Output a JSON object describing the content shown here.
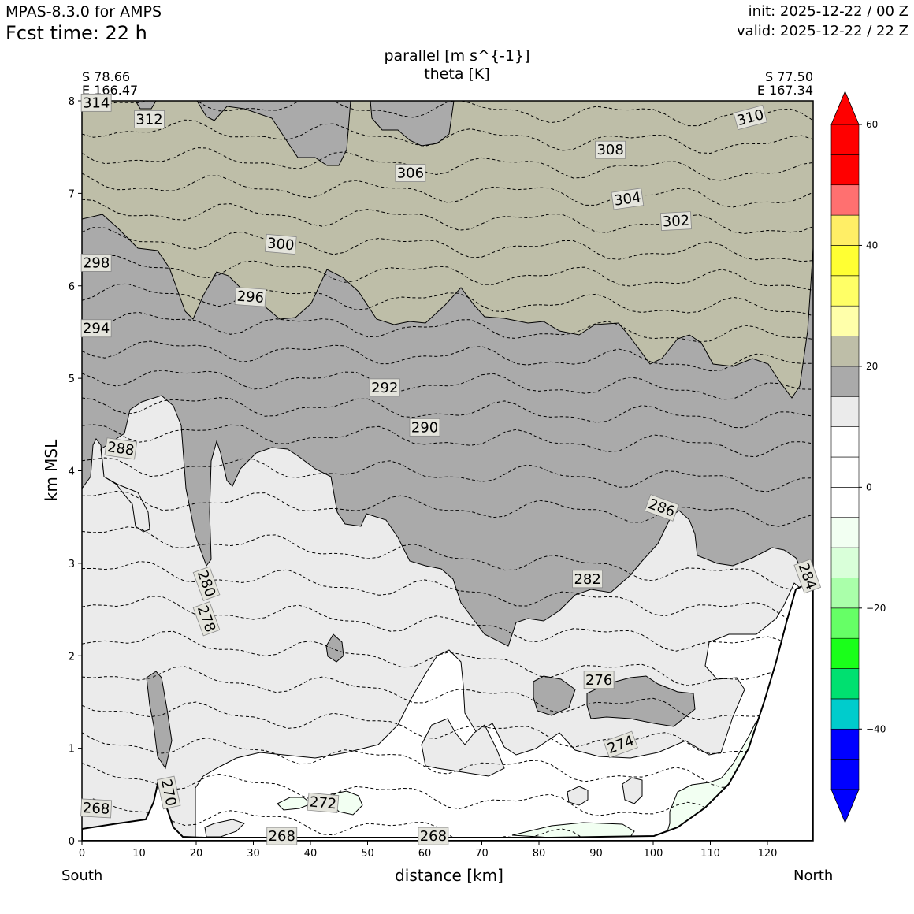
{
  "header": {
    "model": "MPAS-8.3.0 for AMPS",
    "fcst_time": "Fcst time:   22 h",
    "init": "init: 2025-12-22 / 00 Z",
    "valid": "valid: 2025-12-22 / 22 Z"
  },
  "corners": {
    "left_lat": "S 78.66",
    "left_lon": "E 166.47",
    "right_lat": "S 77.50",
    "right_lon": "E 167.34"
  },
  "ends": {
    "left": "South",
    "right": "North"
  },
  "chart_data": {
    "type": "contour",
    "title_line1": "parallel [m s^{-1}]",
    "title_line2": "theta [K]",
    "xlabel": "distance [km]",
    "ylabel": "km MSL",
    "xlim": [
      0,
      128
    ],
    "ylim": [
      0,
      8
    ],
    "xticks": [
      0,
      10,
      20,
      30,
      40,
      50,
      60,
      70,
      80,
      90,
      100,
      110,
      120
    ],
    "yticks": [
      0,
      1,
      2,
      3,
      4,
      5,
      6,
      7,
      8
    ],
    "theta_contour_labels": [
      {
        "value": "314",
        "x": 2.5,
        "y": 7.98,
        "rot": 0
      },
      {
        "value": "312",
        "x": 11.8,
        "y": 7.8,
        "rot": 0
      },
      {
        "value": "310",
        "x": 117,
        "y": 7.82,
        "rot": -15
      },
      {
        "value": "308",
        "x": 92.5,
        "y": 7.47,
        "rot": 0
      },
      {
        "value": "306",
        "x": 57.5,
        "y": 7.22,
        "rot": 0
      },
      {
        "value": "304",
        "x": 95.5,
        "y": 6.94,
        "rot": -8
      },
      {
        "value": "302",
        "x": 104,
        "y": 6.7,
        "rot": -3
      },
      {
        "value": "300",
        "x": 34.8,
        "y": 6.45,
        "rot": 5
      },
      {
        "value": "298",
        "x": 2.5,
        "y": 6.25,
        "rot": 0
      },
      {
        "value": "296",
        "x": 29.5,
        "y": 5.88,
        "rot": 4
      },
      {
        "value": "294",
        "x": 2.5,
        "y": 5.54,
        "rot": 0
      },
      {
        "value": "292",
        "x": 53,
        "y": 4.9,
        "rot": 0
      },
      {
        "value": "290",
        "x": 60,
        "y": 4.47,
        "rot": 0
      },
      {
        "value": "288",
        "x": 6.8,
        "y": 4.24,
        "rot": 8
      },
      {
        "value": "286",
        "x": 101.5,
        "y": 3.6,
        "rot": 20
      },
      {
        "value": "284",
        "x": 127,
        "y": 2.86,
        "rot": 70
      },
      {
        "value": "282",
        "x": 88.5,
        "y": 2.83,
        "rot": 0
      },
      {
        "value": "280",
        "x": 21.8,
        "y": 2.78,
        "rot": 70
      },
      {
        "value": "278",
        "x": 21.8,
        "y": 2.4,
        "rot": 70
      },
      {
        "value": "276",
        "x": 90.5,
        "y": 1.74,
        "rot": 0
      },
      {
        "value": "274",
        "x": 94.3,
        "y": 1.04,
        "rot": -20
      },
      {
        "value": "272",
        "x": 42.2,
        "y": 0.41,
        "rot": 5
      },
      {
        "value": "270",
        "x": 15.2,
        "y": 0.52,
        "rot": 78
      },
      {
        "value": "268",
        "x": 2.5,
        "y": 0.35,
        "rot": 3
      },
      {
        "value": "268",
        "x": 35,
        "y": 0.05,
        "rot": 0
      },
      {
        "value": "268",
        "x": 61.5,
        "y": 0.05,
        "rot": 0
      }
    ],
    "colorbar": {
      "ticks": [
        "60",
        "40",
        "20",
        "0",
        "−20",
        "−40"
      ],
      "tick_values": [
        60,
        40,
        20,
        0,
        -20,
        -40
      ],
      "range": [
        -50,
        60
      ],
      "extend": "both",
      "under_color": "#0000ff",
      "over_color": "#ff0000",
      "levels": [
        {
          "lo": -50,
          "hi": -45,
          "color": "#0000ff"
        },
        {
          "lo": -45,
          "hi": -40,
          "color": "#0000ff"
        },
        {
          "lo": -40,
          "hi": -35,
          "color": "#00cccc"
        },
        {
          "lo": -35,
          "hi": -30,
          "color": "#00e070"
        },
        {
          "lo": -30,
          "hi": -25,
          "color": "#1aff1a"
        },
        {
          "lo": -25,
          "hi": -20,
          "color": "#66ff66"
        },
        {
          "lo": -20,
          "hi": -15,
          "color": "#aaffaa"
        },
        {
          "lo": -15,
          "hi": -10,
          "color": "#d9ffd9"
        },
        {
          "lo": -10,
          "hi": -5,
          "color": "#f2fff2"
        },
        {
          "lo": -5,
          "hi": 0,
          "color": "#ffffff"
        },
        {
          "lo": 0,
          "hi": 5,
          "color": "#ffffff"
        },
        {
          "lo": 5,
          "hi": 10,
          "color": "#ffffff"
        },
        {
          "lo": 10,
          "hi": 15,
          "color": "#ebebeb"
        },
        {
          "lo": 15,
          "hi": 20,
          "color": "#aaaaaa"
        },
        {
          "lo": 20,
          "hi": 25,
          "color": "#bebea8"
        },
        {
          "lo": 25,
          "hi": 30,
          "color": "#ffffaa"
        },
        {
          "lo": 30,
          "hi": 35,
          "color": "#ffff66"
        },
        {
          "lo": 35,
          "hi": 40,
          "color": "#ffff33"
        },
        {
          "lo": 40,
          "hi": 45,
          "color": "#ffee66"
        },
        {
          "lo": 45,
          "hi": 50,
          "color": "#ff7070"
        },
        {
          "lo": 50,
          "hi": 55,
          "color": "#ff0000"
        },
        {
          "lo": 55,
          "hi": 60,
          "color": "#ff0000"
        }
      ]
    },
    "fill_colors": {
      "band_15_20": "#aaaaaa",
      "band_20_25": "#bebea8",
      "band_10_15": "#ebebeb",
      "band_0_10": "#ffffff",
      "band_neg": "#f2fff2"
    }
  }
}
